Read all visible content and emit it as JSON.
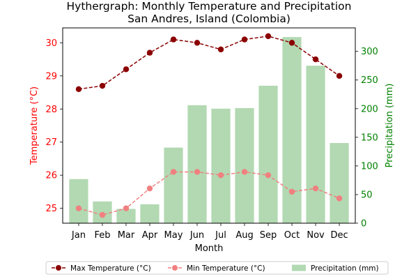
{
  "chart_data": {
    "type": "bar+line",
    "title_line1": "Hythergraph: Monthly Temperature and Precipitation",
    "title_line2": "San Andres, Island (Colombia)",
    "xlabel": "Month",
    "ylabel_left": "Temperature (°C)",
    "ylabel_right": "Precipitation (mm)",
    "categories": [
      "Jan",
      "Feb",
      "Mar",
      "Apr",
      "May",
      "Jun",
      "Jul",
      "Aug",
      "Sep",
      "Oct",
      "Nov",
      "Dec"
    ],
    "left_axis": {
      "ylim": [
        24.55,
        30.45
      ],
      "ticks": [
        25,
        26,
        27,
        28,
        29,
        30
      ],
      "color": "#ff0000"
    },
    "right_axis": {
      "ylim": [
        0,
        341
      ],
      "ticks": [
        0,
        50,
        100,
        150,
        200,
        250,
        300
      ],
      "color": "#008000"
    },
    "series": [
      {
        "name": "Max Temperature (°C)",
        "kind": "line",
        "axis": "left",
        "color": "#8b0000",
        "linestyle": "dashed",
        "marker": "circle",
        "values": [
          28.6,
          28.7,
          29.2,
          29.7,
          30.1,
          30.0,
          29.8,
          30.1,
          30.2,
          30.0,
          29.5,
          29.0
        ]
      },
      {
        "name": "Min Temperature (°C)",
        "kind": "line",
        "axis": "left",
        "color": "#f08080",
        "linestyle": "dashed",
        "marker": "circle",
        "values": [
          25.0,
          24.8,
          25.0,
          25.6,
          26.1,
          26.1,
          26.0,
          26.1,
          26.0,
          25.5,
          25.6,
          25.3
        ]
      },
      {
        "name": "Precipitation (mm)",
        "kind": "bar",
        "axis": "right",
        "color": "#008000",
        "opacity": 0.3,
        "values": [
          77,
          38,
          25,
          33,
          132,
          206,
          200,
          201,
          240,
          325,
          275,
          140
        ]
      }
    ],
    "legend": {
      "placement": "bottom-center",
      "columns": 3
    },
    "grid": false
  }
}
